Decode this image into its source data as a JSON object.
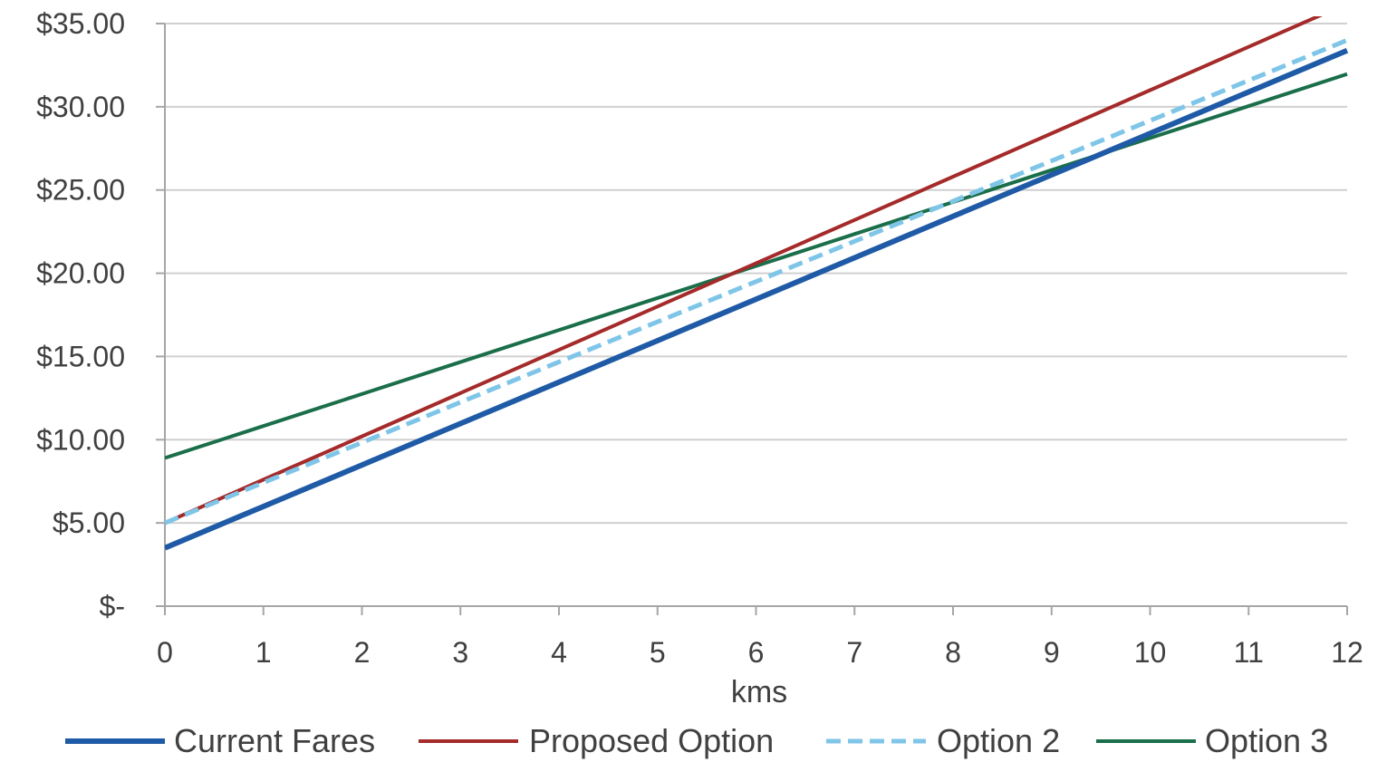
{
  "chart_data": {
    "type": "line",
    "title": "",
    "xlabel": "kms",
    "ylabel": "",
    "x": [
      0,
      1,
      2,
      3,
      4,
      5,
      6,
      7,
      8,
      9,
      10,
      11,
      12
    ],
    "xlim": [
      0,
      12
    ],
    "ylim": [
      0,
      35
    ],
    "x_tick_labels": [
      "0",
      "1",
      "2",
      "3",
      "4",
      "5",
      "6",
      "7",
      "8",
      "9",
      "10",
      "11",
      "12"
    ],
    "y_ticks": [
      0,
      5,
      10,
      15,
      20,
      25,
      30,
      35
    ],
    "y_tick_labels": [
      "$-",
      "$5.00",
      "$10.00",
      "$15.00",
      "$20.00",
      "$25.00",
      "$30.00",
      "$35.00"
    ],
    "grid": "horizontal",
    "legend_position": "bottom",
    "series": [
      {
        "name": "Current Fares",
        "color": "#1f5aa6",
        "style": "solid",
        "width": 6,
        "values": [
          3.5,
          5.99,
          8.48,
          10.97,
          13.46,
          15.95,
          18.44,
          20.93,
          23.42,
          25.91,
          28.4,
          30.89,
          33.38
        ]
      },
      {
        "name": "Proposed Option",
        "color": "#a52a2a",
        "style": "solid",
        "width": 4,
        "values": [
          5.0,
          7.6,
          10.2,
          12.8,
          15.4,
          18.0,
          20.6,
          23.2,
          25.8,
          28.4,
          31.0,
          33.6,
          36.2
        ]
      },
      {
        "name": "Option 2",
        "color": "#7ec5e8",
        "style": "dashed",
        "width": 5,
        "values": [
          5.0,
          7.42,
          9.83,
          12.25,
          14.67,
          17.08,
          19.5,
          21.92,
          24.33,
          26.75,
          29.17,
          31.58,
          34.0
        ]
      },
      {
        "name": "Option 3",
        "color": "#1a6e4a",
        "style": "solid",
        "width": 4,
        "values": [
          8.9,
          10.822,
          12.744,
          14.666,
          16.588,
          18.51,
          20.432,
          22.354,
          24.276,
          26.198,
          28.12,
          30.042,
          31.964
        ]
      }
    ]
  }
}
